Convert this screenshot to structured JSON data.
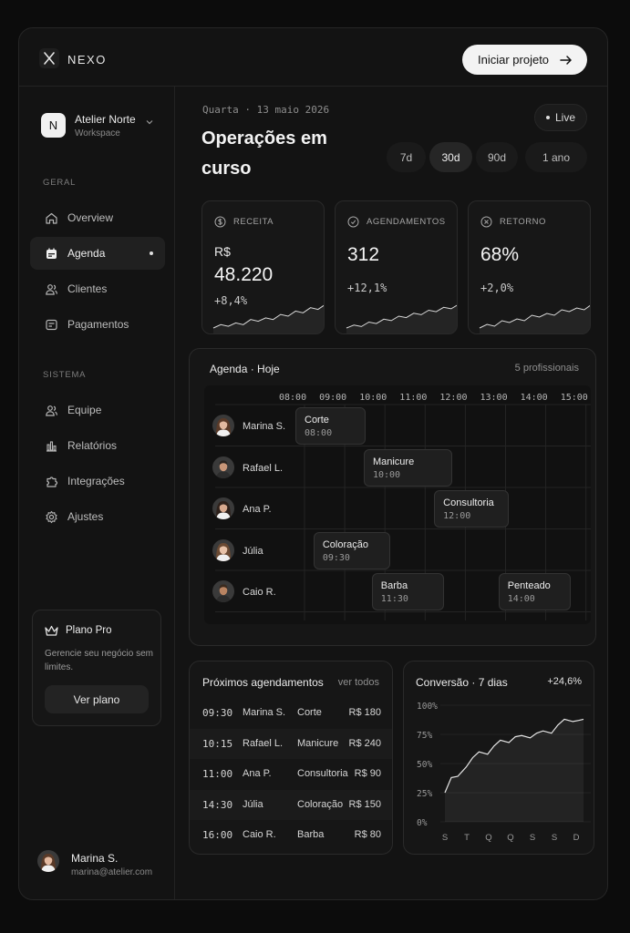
{
  "brand": {
    "name": "NEXO",
    "cta_label": "Iniciar projeto"
  },
  "workspace": {
    "initial": "N",
    "name": "Atelier Norte",
    "sub": "Workspace"
  },
  "sidebar": {
    "section_general": "GERAL",
    "section_system": "SISTEMA",
    "general_items": [
      {
        "label": "Overview",
        "icon": "home-icon"
      },
      {
        "label": "Agenda",
        "icon": "calendar-icon",
        "active": true
      },
      {
        "label": "Clientes",
        "icon": "users-icon"
      },
      {
        "label": "Pagamentos",
        "icon": "payments-icon"
      }
    ],
    "system_items": [
      {
        "label": "Equipe",
        "icon": "team-icon"
      },
      {
        "label": "Relatórios",
        "icon": "reports-icon"
      },
      {
        "label": "Integrações",
        "icon": "puzzle-icon"
      },
      {
        "label": "Ajustes",
        "icon": "gear-icon"
      }
    ],
    "plan": {
      "title": "Plano Pro",
      "text": "Gerencie seu negócio sem limites.",
      "button": "Ver plano"
    },
    "user": {
      "name": "Marina S.",
      "email": "marina@atelier.com"
    }
  },
  "header": {
    "date": "Quarta · 13 maio 2026",
    "title": "Operações em curso",
    "live_label": "Live",
    "ranges": [
      "7d",
      "30d",
      "90d",
      "1 ano"
    ],
    "active_range": "30d"
  },
  "kpis": [
    {
      "label": "RECEITA",
      "currency": "R$",
      "value": "48.220",
      "delta": "+8,4%",
      "icon": "dollar-icon",
      "trend": [
        3,
        5,
        4,
        6,
        5,
        8,
        7,
        9,
        8,
        11,
        10,
        13,
        12,
        15,
        14,
        17
      ]
    },
    {
      "label": "AGENDAMENTOS",
      "value": "312",
      "delta": "+12,1%",
      "icon": "calendar-check-icon",
      "trend": [
        3,
        5,
        4,
        7,
        6,
        9,
        8,
        11,
        10,
        13,
        12,
        15,
        14,
        17,
        16,
        19
      ]
    },
    {
      "label": "RETORNO",
      "value": "68%",
      "delta": "+2,0%",
      "icon": "return-icon",
      "trend": [
        4,
        6,
        5,
        8,
        7,
        9,
        8,
        11,
        10,
        12,
        11,
        14,
        13,
        15,
        14,
        17
      ]
    }
  ],
  "schedule": {
    "title": "Agenda · Hoje",
    "count": "5 profissionais",
    "hours": [
      "08:00",
      "09:00",
      "10:00",
      "11:00",
      "12:00",
      "13:00",
      "14:00",
      "15:00"
    ],
    "rows": [
      {
        "name": "Marina S.",
        "avatar": "female-avatar-1",
        "events": [
          {
            "name": "Corte",
            "time": "08:00",
            "start": 8.0,
            "end": 9.75
          }
        ]
      },
      {
        "name": "Rafael L.",
        "avatar": "male-avatar-1",
        "events": [
          {
            "name": "Manicure",
            "time": "10:00",
            "start": 9.7,
            "end": 11.9
          }
        ]
      },
      {
        "name": "Ana P.",
        "avatar": "female-avatar-2",
        "events": [
          {
            "name": "Consultoria",
            "time": "12:00",
            "start": 11.45,
            "end": 13.3
          }
        ]
      },
      {
        "name": "Júlia",
        "avatar": "female-avatar-3",
        "events": [
          {
            "name": "Coloração",
            "time": "09:30",
            "start": 8.45,
            "end": 10.35
          }
        ]
      },
      {
        "name": "Caio R.",
        "avatar": "male-avatar-2",
        "events": [
          {
            "name": "Barba",
            "time": "11:30",
            "start": 9.9,
            "end": 11.7
          },
          {
            "name": "Penteado",
            "time": "14:00",
            "start": 13.05,
            "end": 14.85
          }
        ]
      }
    ]
  },
  "upcoming": {
    "title": "Próximos agendamentos",
    "link": "ver todos",
    "rows": [
      {
        "time": "09:30",
        "name": "Marina S.",
        "service": "Corte",
        "price": "R$ 180"
      },
      {
        "time": "10:15",
        "name": "Rafael L.",
        "service": "Manicure",
        "price": "R$ 240"
      },
      {
        "time": "11:00",
        "name": "Ana P.",
        "service": "Consultoria",
        "price": "R$ 90"
      },
      {
        "time": "14:30",
        "name": "Júlia",
        "service": "Coloração",
        "price": "R$ 150"
      },
      {
        "time": "16:00",
        "name": "Caio R.",
        "service": "Barba",
        "price": "R$ 80"
      }
    ]
  },
  "conversion": {
    "title": "Conversão · 7 dias",
    "delta": "+24,6%",
    "chart_data": {
      "type": "line",
      "categories": [
        "S",
        "T",
        "Q",
        "Q",
        "S",
        "S",
        "D"
      ],
      "yticks": [
        "100%",
        "75%",
        "50%",
        "25%",
        "0%"
      ],
      "ylim": [
        0,
        100
      ],
      "series_points": [
        [
          0,
          25
        ],
        [
          0.3,
          38
        ],
        [
          0.6,
          39
        ],
        [
          1.0,
          47
        ],
        [
          1.3,
          55
        ],
        [
          1.6,
          60
        ],
        [
          2.0,
          58
        ],
        [
          2.3,
          65
        ],
        [
          2.6,
          70
        ],
        [
          3.0,
          68
        ],
        [
          3.3,
          73
        ],
        [
          3.6,
          74
        ],
        [
          4.0,
          72
        ],
        [
          4.3,
          76
        ],
        [
          4.6,
          78
        ],
        [
          5.0,
          76
        ],
        [
          5.3,
          83
        ],
        [
          5.6,
          88
        ],
        [
          6.0,
          86
        ],
        [
          6.3,
          87
        ],
        [
          6.5,
          88
        ]
      ]
    }
  },
  "colors": {
    "background": "#0c0c0c",
    "panel": "#161616",
    "accent": "#f3f3f3"
  }
}
